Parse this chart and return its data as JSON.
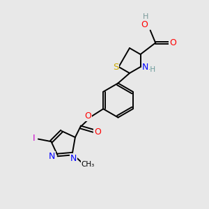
{
  "bg_color": "#e8e8e8",
  "atom_colors": {
    "C": "#000000",
    "H": "#7a9a9a",
    "O": "#ff0000",
    "N": "#0000ff",
    "S": "#ccaa00",
    "I": "#cc00cc"
  },
  "bond_color": "#000000",
  "fig_size": [
    3.0,
    3.0
  ],
  "dpi": 100
}
